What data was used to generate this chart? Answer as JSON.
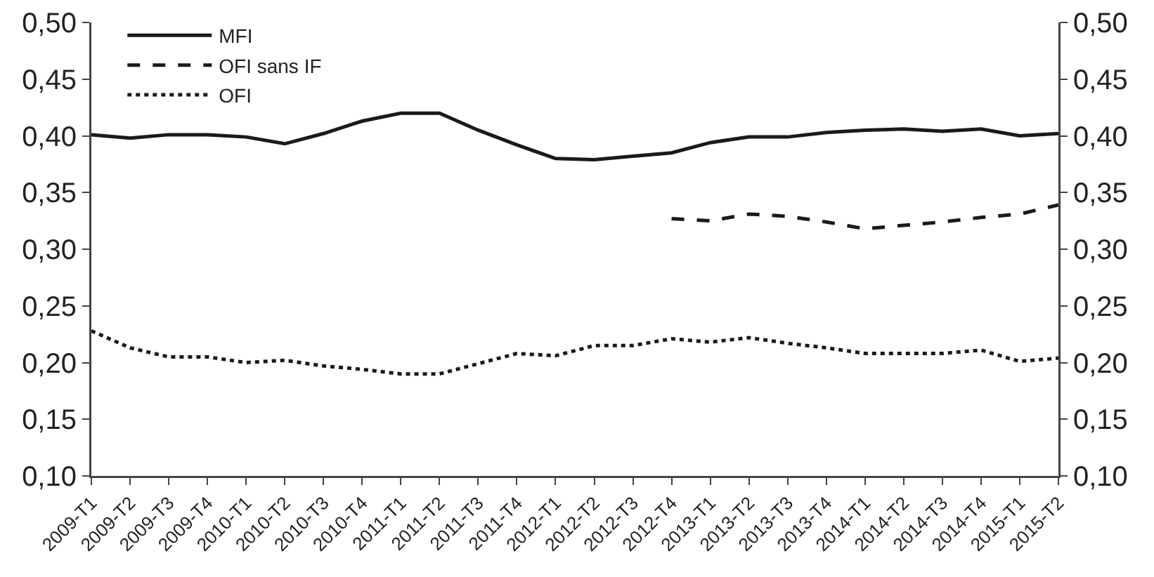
{
  "chart_data": {
    "type": "line",
    "categories": [
      "2009-T1",
      "2009-T2",
      "2009-T3",
      "2009-T4",
      "2010-T1",
      "2010-T2",
      "2010-T3",
      "2010-T4",
      "2011-T1",
      "2011-T2",
      "2011-T3",
      "2011-T4",
      "2012-T1",
      "2012-T2",
      "2012-T3",
      "2012-T4",
      "2013-T1",
      "2013-T2",
      "2013-T3",
      "2013-T4",
      "2014-T1",
      "2014-T2",
      "2014-T3",
      "2014-T4",
      "2015-T1",
      "2015-T2"
    ],
    "series": [
      {
        "name": "MFI",
        "color": "#1a1a1a",
        "line_style": "solid",
        "values": [
          0.401,
          0.398,
          0.401,
          0.401,
          0.399,
          0.393,
          0.402,
          0.413,
          0.42,
          0.42,
          0.405,
          0.392,
          0.38,
          0.379,
          0.382,
          0.385,
          0.394,
          0.399,
          0.399,
          0.403,
          0.405,
          0.406,
          0.404,
          0.406,
          0.4,
          0.402
        ]
      },
      {
        "name": "OFI sans IF",
        "color": "#1a1a1a",
        "line_style": "dashed",
        "values": [
          null,
          null,
          null,
          null,
          null,
          null,
          null,
          null,
          null,
          null,
          null,
          null,
          null,
          null,
          null,
          0.327,
          0.325,
          0.331,
          0.329,
          0.324,
          0.318,
          0.321,
          0.324,
          0.328,
          0.331,
          0.339
        ]
      },
      {
        "name": "OFI",
        "color": "#1a1a1a",
        "line_style": "dotted",
        "values": [
          0.228,
          0.213,
          0.205,
          0.205,
          0.2,
          0.202,
          0.197,
          0.194,
          0.19,
          0.19,
          0.199,
          0.208,
          0.206,
          0.215,
          0.215,
          0.221,
          0.218,
          0.222,
          0.217,
          0.213,
          0.208,
          0.208,
          0.208,
          0.211,
          0.201,
          0.204
        ]
      }
    ],
    "ylim": [
      0.1,
      0.5
    ],
    "yticks": [
      {
        "value": 0.1,
        "label": "0,10"
      },
      {
        "value": 0.15,
        "label": "0,15"
      },
      {
        "value": 0.2,
        "label": "0,20"
      },
      {
        "value": 0.25,
        "label": "0,25"
      },
      {
        "value": 0.3,
        "label": "0,30"
      },
      {
        "value": 0.35,
        "label": "0,35"
      },
      {
        "value": 0.4,
        "label": "0,40"
      },
      {
        "value": 0.45,
        "label": "0,45"
      },
      {
        "value": 0.5,
        "label": "0,50"
      }
    ],
    "y2lim": [
      0.1,
      0.5
    ],
    "y2ticks": [
      {
        "value": 0.1,
        "label": "0,10"
      },
      {
        "value": 0.15,
        "label": "0,15"
      },
      {
        "value": 0.2,
        "label": "0,20"
      },
      {
        "value": 0.25,
        "label": "0,25"
      },
      {
        "value": 0.3,
        "label": "0,30"
      },
      {
        "value": 0.35,
        "label": "0,35"
      },
      {
        "value": 0.4,
        "label": "0,40"
      },
      {
        "value": 0.45,
        "label": "0,45"
      },
      {
        "value": 0.5,
        "label": "0,50"
      }
    ],
    "grid": false,
    "legend": "top left",
    "marker": "none"
  }
}
